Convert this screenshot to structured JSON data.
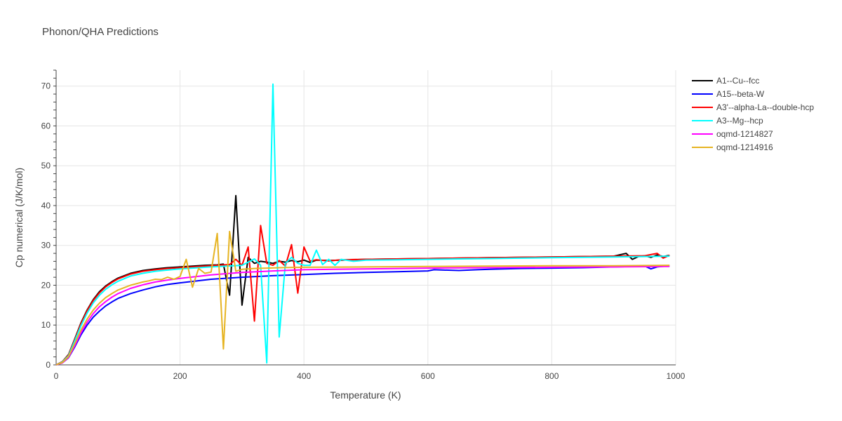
{
  "chart_data": {
    "type": "line",
    "title": "Phonon/QHA Predictions",
    "xlabel": "Temperature (K)",
    "ylabel": "Cp numerical (J/K/mol)",
    "xlim": [
      0,
      1000
    ],
    "ylim": [
      0,
      74
    ],
    "xticks": [
      0,
      200,
      400,
      600,
      800,
      1000
    ],
    "yticks": [
      0,
      10,
      20,
      30,
      40,
      50,
      60,
      70
    ],
    "grid": true,
    "legend_position": "right",
    "series": [
      {
        "name": "A1--Cu--fcc",
        "color": "#000000",
        "x": [
          0,
          10,
          20,
          30,
          40,
          50,
          60,
          70,
          80,
          90,
          100,
          120,
          140,
          160,
          180,
          200,
          220,
          240,
          260,
          270,
          280,
          290,
          300,
          310,
          320,
          330,
          340,
          350,
          360,
          370,
          380,
          390,
          400,
          410,
          420,
          440,
          460,
          500,
          550,
          600,
          650,
          700,
          750,
          800,
          850,
          900,
          920,
          930,
          940,
          950,
          960,
          970,
          980,
          990
        ],
        "y": [
          0,
          0.8,
          2.6,
          6.5,
          10.5,
          13.8,
          16.4,
          18.4,
          19.8,
          20.9,
          21.8,
          23.0,
          23.7,
          24.1,
          24.4,
          24.6,
          24.8,
          25.0,
          25.1,
          25.3,
          17.5,
          42.5,
          15.0,
          27.0,
          25.5,
          26.0,
          25.8,
          25.5,
          26.0,
          25.8,
          26.2,
          25.9,
          26.3,
          25.7,
          26.3,
          26.2,
          26.3,
          26.5,
          26.6,
          26.7,
          26.8,
          26.9,
          27.0,
          27.1,
          27.2,
          27.3,
          28.0,
          26.5,
          27.2,
          27.4,
          27.0,
          27.6,
          27.2,
          27.5
        ]
      },
      {
        "name": "A15--beta-W",
        "color": "#0000ff",
        "x": [
          0,
          10,
          20,
          30,
          40,
          50,
          60,
          70,
          80,
          90,
          100,
          120,
          140,
          160,
          180,
          200,
          250,
          300,
          350,
          400,
          450,
          500,
          550,
          600,
          610,
          650,
          680,
          700,
          750,
          800,
          850,
          900,
          950,
          960,
          970,
          990
        ],
        "y": [
          0,
          0.5,
          1.8,
          4.5,
          7.5,
          10.0,
          12.0,
          13.5,
          14.8,
          15.8,
          16.7,
          17.9,
          18.8,
          19.6,
          20.2,
          20.6,
          21.5,
          22.0,
          22.4,
          22.7,
          23.0,
          23.2,
          23.4,
          23.6,
          23.9,
          23.7,
          23.9,
          24.0,
          24.2,
          24.3,
          24.4,
          24.6,
          24.8,
          24.1,
          24.6,
          24.9
        ]
      },
      {
        "name": "A3'--alpha-La--double-hcp",
        "color": "#ff0000",
        "x": [
          0,
          10,
          20,
          30,
          40,
          50,
          60,
          70,
          80,
          90,
          100,
          120,
          140,
          160,
          180,
          200,
          220,
          240,
          260,
          280,
          290,
          300,
          310,
          320,
          330,
          340,
          350,
          360,
          370,
          380,
          390,
          400,
          410,
          420,
          440,
          460,
          500,
          550,
          600,
          650,
          700,
          750,
          800,
          850,
          900,
          950,
          970,
          980,
          990
        ],
        "y": [
          0,
          0.8,
          2.5,
          6.3,
          10.3,
          13.6,
          16.2,
          18.1,
          19.6,
          20.7,
          21.6,
          22.8,
          23.5,
          23.9,
          24.2,
          24.4,
          24.6,
          24.8,
          25.0,
          25.2,
          26.5,
          25.0,
          29.6,
          11.0,
          35.0,
          25.5,
          25.0,
          26.2,
          24.8,
          30.2,
          18.0,
          29.6,
          26.0,
          26.4,
          26.1,
          26.4,
          26.5,
          26.6,
          26.7,
          26.8,
          26.9,
          27.0,
          27.1,
          27.2,
          27.3,
          27.4,
          28.0,
          26.8,
          27.5
        ]
      },
      {
        "name": "A3--Mg--hcp",
        "color": "#00ffff",
        "x": [
          0,
          10,
          20,
          30,
          40,
          50,
          60,
          70,
          80,
          90,
          100,
          120,
          140,
          160,
          180,
          200,
          250,
          300,
          320,
          330,
          340,
          350,
          360,
          370,
          380,
          390,
          400,
          410,
          420,
          430,
          440,
          450,
          460,
          480,
          500,
          550,
          600,
          650,
          700,
          750,
          800,
          850,
          900,
          950,
          990
        ],
        "y": [
          0,
          0.7,
          2.3,
          6.0,
          9.8,
          13.0,
          15.6,
          17.5,
          19.0,
          20.1,
          21.0,
          22.3,
          23.0,
          23.5,
          23.8,
          24.1,
          24.6,
          25.0,
          26.6,
          25.0,
          0.5,
          70.5,
          7.0,
          25.5,
          27.0,
          25.5,
          25.0,
          25.0,
          28.8,
          25.2,
          26.5,
          25.0,
          26.5,
          26.0,
          26.3,
          26.4,
          26.5,
          26.6,
          26.7,
          26.8,
          26.9,
          27.0,
          27.1,
          27.2,
          27.3
        ]
      },
      {
        "name": "oqmd-1214827",
        "color": "#ff00ff",
        "x": [
          0,
          10,
          20,
          30,
          40,
          50,
          60,
          70,
          80,
          90,
          100,
          120,
          140,
          160,
          180,
          200,
          250,
          300,
          350,
          400,
          450,
          500,
          600,
          700,
          800,
          900,
          990
        ],
        "y": [
          0,
          0.5,
          1.9,
          4.8,
          8.0,
          10.7,
          12.9,
          14.6,
          15.9,
          17.0,
          17.9,
          19.2,
          20.1,
          20.8,
          21.3,
          21.7,
          22.6,
          23.2,
          23.6,
          23.9,
          24.0,
          24.1,
          24.3,
          24.4,
          24.5,
          24.6,
          24.7
        ]
      },
      {
        "name": "oqmd-1214916",
        "color": "#e6b422",
        "x": [
          0,
          10,
          20,
          30,
          40,
          50,
          60,
          70,
          80,
          90,
          100,
          110,
          120,
          130,
          140,
          150,
          160,
          170,
          180,
          190,
          200,
          210,
          220,
          230,
          240,
          250,
          260,
          270,
          280,
          290,
          300,
          310,
          320,
          340,
          360,
          400,
          500,
          600,
          700,
          800,
          900,
          990
        ],
        "y": [
          0,
          0.6,
          2.1,
          5.3,
          8.7,
          11.5,
          13.8,
          15.5,
          16.9,
          17.9,
          18.8,
          19.4,
          20.0,
          20.4,
          20.8,
          21.1,
          21.5,
          21.4,
          22.0,
          21.5,
          22.2,
          26.5,
          19.5,
          24.2,
          23.0,
          23.3,
          33.0,
          4.0,
          33.5,
          23.5,
          24.0,
          24.1,
          24.2,
          24.3,
          24.4,
          24.5,
          24.6,
          24.7,
          24.8,
          24.9,
          24.9,
          25.0
        ]
      }
    ]
  }
}
